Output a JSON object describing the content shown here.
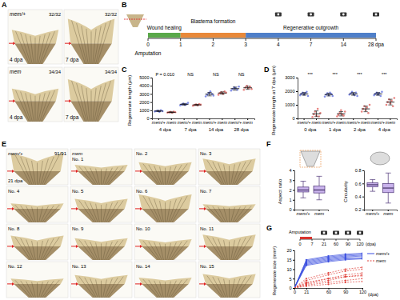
{
  "panel_labels": [
    "A",
    "B",
    "C",
    "D",
    "E",
    "F",
    "G"
  ],
  "panel_a": {
    "images": [
      {
        "label": "mem/+",
        "count": "32/32",
        "stage": "4 dpa"
      },
      {
        "count": "32/32",
        "stage": "7 dpa"
      },
      {
        "label": "mem",
        "count": "34/34",
        "stage": "4 dpa"
      },
      {
        "count": "34/34",
        "stage": "7 dpa"
      }
    ]
  },
  "panel_b": {
    "amputation": "Amputation",
    "ticks": [
      0,
      1,
      2,
      3,
      4,
      7,
      14,
      {
        "value": 28,
        "label": "28 dpa"
      }
    ],
    "phases": [
      {
        "label": "Wound healing",
        "start": 0,
        "end": 1,
        "color": "#5aa84a"
      },
      {
        "label": "Blastema formation",
        "start": 1,
        "end": 3,
        "color": "#e8893a"
      },
      {
        "label": "Regenerative outgrowth",
        "start": 3,
        "end": 28,
        "color": "#4f7fc9"
      }
    ],
    "imaging": [
      4,
      7,
      14,
      28
    ]
  },
  "panel_e": {
    "images": [
      {
        "label": "mem/+",
        "count": "91/91",
        "stage": "21 dpa"
      },
      {
        "label": "mem",
        "number": "No. 1"
      },
      {
        "number": "No. 2"
      },
      {
        "number": "No. 3"
      },
      {
        "number": "No. 4"
      },
      {
        "number": "No. 5"
      },
      {
        "number": "No. 6"
      },
      {
        "number": "No. 7"
      },
      {
        "number": "No. 8"
      },
      {
        "number": "No. 9"
      },
      {
        "number": "No. 10"
      },
      {
        "number": "No. 11"
      },
      {
        "number": "No. 12"
      },
      {
        "number": "No. 13"
      },
      {
        "number": "No. 14"
      },
      {
        "number": "No. 15"
      }
    ]
  },
  "panel_g_schematic": {
    "amputation": "Amputation",
    "ticks": [
      0,
      7,
      21,
      60,
      90,
      120
    ],
    "unit": "(dpa)",
    "treatment": [
      0,
      7
    ],
    "imaging": [
      21,
      60,
      90,
      120
    ]
  },
  "chart_data": [
    {
      "type": "dot",
      "ylabel": "Regenerate length (µm)",
      "categories": [
        "mem/+",
        "mem",
        "mem/+",
        "mem",
        "mem/+",
        "mem",
        "mem/+",
        "mem"
      ],
      "groups": [
        "4 dpa",
        "7 dpa",
        "14 dpa",
        "28 dpa"
      ],
      "annotations": [
        "P = 0.010",
        "NS",
        "NS",
        "NS"
      ],
      "colors": [
        "#2f45d8",
        "#d8342f",
        "#2f45d8",
        "#d8342f",
        "#2f45d8",
        "#d8342f",
        "#2f45d8",
        "#d8342f"
      ],
      "ylim": [
        0,
        5000
      ],
      "yticks": [
        0,
        1000,
        2000,
        3000,
        4000,
        5000
      ],
      "points": [
        [
          850,
          900,
          950,
          800,
          1000,
          880
        ],
        [
          700,
          750,
          800,
          680,
          820,
          760
        ],
        [
          1600,
          1700,
          1800,
          1650,
          1750,
          1900
        ],
        [
          1550,
          1650,
          1700,
          1600,
          1750,
          1680
        ],
        [
          2700,
          2900,
          3100,
          3300,
          3000,
          2800
        ],
        [
          2900,
          3100,
          3200,
          3000,
          3300,
          3150
        ],
        [
          3400,
          3600,
          3800,
          3700,
          3500,
          3900
        ],
        [
          3500,
          3800,
          4000,
          3700,
          3900,
          3600
        ]
      ],
      "means": [
        900,
        750,
        1730,
        1655,
        2970,
        3110,
        3650,
        3750
      ],
      "sd": [
        70,
        55,
        100,
        70,
        210,
        140,
        190,
        190
      ]
    },
    {
      "type": "dot",
      "ylabel": "Regenerate length at 7 dpa (µm)",
      "categories": [
        "mem/+",
        "mem",
        "mem/+",
        "mem",
        "mem/+",
        "mem",
        "mem/+",
        "mem"
      ],
      "groups": [
        "0 dpa",
        "1 dpa",
        "2 dpa",
        "4 dpa"
      ],
      "annotations": [
        "***",
        "***",
        "***",
        "***"
      ],
      "colors": [
        "#2f45d8",
        "#d8342f",
        "#2f45d8",
        "#d8342f",
        "#2f45d8",
        "#d8342f",
        "#2f45d8",
        "#d8342f"
      ],
      "ylim": [
        0,
        3000
      ],
      "yticks": [
        0,
        1000,
        2000,
        3000
      ],
      "points": [
        [
          1700,
          1800,
          1900,
          1750,
          1850,
          1950,
          1650
        ],
        [
          100,
          300,
          500,
          200,
          700,
          150,
          400
        ],
        [
          1600,
          1750,
          1850,
          1700,
          1900,
          1800,
          1650
        ],
        [
          150,
          250,
          400,
          600,
          300,
          200,
          500
        ],
        [
          1750,
          1850,
          1950,
          1800,
          1700,
          1900,
          1650
        ],
        [
          500,
          700,
          900,
          600,
          800,
          400,
          1000
        ],
        [
          1700,
          1800,
          1900,
          1750,
          1850,
          1650,
          1950
        ],
        [
          1000,
          1200,
          1400,
          1100,
          1300,
          900,
          1500
        ]
      ],
      "means": [
        1800,
        340,
        1750,
        340,
        1800,
        700,
        1800,
        1200
      ],
      "sd": [
        100,
        210,
        100,
        160,
        100,
        210,
        100,
        210
      ]
    },
    {
      "type": "box",
      "ylabel": "Aspect ratio",
      "categories": [
        "mem/+",
        "mem"
      ],
      "colors": [
        "#c9b3ec",
        "#c9b3ec"
      ],
      "ylim": [
        0,
        4
      ],
      "yticks": [
        0,
        1,
        2,
        3,
        4
      ],
      "min": [
        1.2,
        1.0
      ],
      "q1": [
        1.8,
        1.7
      ],
      "median": [
        2.0,
        2.0
      ],
      "q3": [
        2.3,
        2.4
      ],
      "max": [
        2.9,
        3.4
      ]
    },
    {
      "type": "box",
      "ylabel": "Circularity",
      "categories": [
        "mem/+",
        "mem"
      ],
      "colors": [
        "#c9b3ec",
        "#c9b3ec"
      ],
      "ylim": [
        0.2,
        0.8
      ],
      "yticks": [
        0.2,
        0.4,
        0.6,
        0.8
      ],
      "min": [
        0.48,
        0.3
      ],
      "q1": [
        0.55,
        0.46
      ],
      "median": [
        0.58,
        0.53
      ],
      "q3": [
        0.61,
        0.6
      ],
      "max": [
        0.66,
        0.76
      ]
    },
    {
      "type": "line",
      "ylabel": "Regenerate size (mm²)",
      "xlabel": "(dpa)",
      "x": [
        0,
        21,
        60,
        90,
        120
      ],
      "xlim": [
        0,
        120
      ],
      "xticks": [
        0,
        21,
        60,
        90,
        120
      ],
      "ylim": [
        0,
        20
      ],
      "yticks": [
        0,
        5,
        10,
        15,
        20
      ],
      "legend": "right",
      "series": [
        {
          "name": "mem/+",
          "color": "#3b4fe0",
          "line_style": "solid",
          "marker": "circle",
          "lines": [
            [
              0,
              13,
              15,
              16,
              16
            ],
            [
              0,
              14,
              16,
              17,
              17.5
            ],
            [
              0,
              12,
              14,
              15,
              15.5
            ],
            [
              0,
              15,
              17,
              18,
              18.5
            ],
            [
              0,
              13.5,
              15.5,
              16.5,
              17
            ],
            [
              0,
              12.5,
              14.5,
              15.5,
              16
            ],
            [
              0,
              14.5,
              16.5,
              17.5,
              18
            ]
          ]
        },
        {
          "name": "mem",
          "color": "#e0413b",
          "line_style": "dashed",
          "marker": "circle",
          "lines": [
            [
              0,
              2,
              4,
              6,
              7
            ],
            [
              0,
              4,
              7,
              9,
              10
            ],
            [
              0,
              1,
              2,
              3,
              3.5
            ],
            [
              0,
              3,
              5,
              6,
              6.5
            ],
            [
              0,
              5,
              8,
              10,
              11
            ],
            [
              0,
              1.5,
              3,
              4,
              5
            ],
            [
              0,
              2.5,
              5,
              7,
              8
            ]
          ]
        }
      ]
    }
  ]
}
